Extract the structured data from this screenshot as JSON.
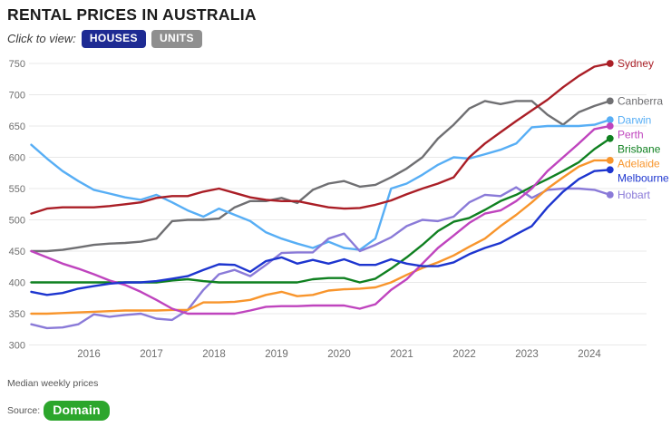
{
  "header": {
    "title": "RENTAL PRICES IN AUSTRALIA",
    "view_label": "Click to view:",
    "buttons": [
      {
        "label": "HOUSES",
        "active": true
      },
      {
        "label": "UNITS",
        "active": false
      }
    ]
  },
  "footer": {
    "note": "Median weekly prices",
    "source_label": "Source:",
    "source_name": "Domain"
  },
  "chart_data": {
    "type": "line",
    "title": "Rental prices in Australia — median weekly house rents",
    "x_start": 2015.08,
    "x_step": 0.25,
    "x_axis_years": [
      2016,
      2017,
      2018,
      2019,
      2020,
      2021,
      2022,
      2023,
      2024
    ],
    "y_ticks": [
      300,
      350,
      400,
      450,
      500,
      550,
      600,
      650,
      700,
      750
    ],
    "ylim": [
      300,
      750
    ],
    "grid": true,
    "grid_color": "#e8e8e8",
    "tick_color": "#6e6e6e",
    "legend_position": "right-end-labels",
    "series": [
      {
        "name": "Sydney",
        "color": "#aa1e26",
        "values": [
          510,
          518,
          520,
          520,
          520,
          522,
          525,
          528,
          535,
          538,
          538,
          545,
          550,
          543,
          536,
          532,
          530,
          530,
          525,
          520,
          518,
          519,
          524,
          531,
          541,
          550,
          558,
          568,
          600,
          622,
          640,
          658,
          675,
          692,
          712,
          730,
          745,
          750
        ]
      },
      {
        "name": "Canberra",
        "color": "#6f6f72",
        "values": [
          450,
          450,
          452,
          456,
          460,
          462,
          463,
          465,
          470,
          498,
          500,
          500,
          502,
          520,
          530,
          530,
          535,
          527,
          548,
          558,
          562,
          553,
          556,
          568,
          582,
          600,
          630,
          652,
          678,
          690,
          685,
          690,
          690,
          668,
          652,
          672,
          682,
          690
        ]
      },
      {
        "name": "Darwin",
        "color": "#57aef5",
        "values": [
          620,
          598,
          578,
          562,
          548,
          542,
          536,
          532,
          540,
          528,
          515,
          505,
          518,
          508,
          498,
          480,
          470,
          462,
          455,
          465,
          455,
          452,
          470,
          550,
          558,
          572,
          588,
          600,
          598,
          605,
          612,
          622,
          648,
          650,
          650,
          650,
          652,
          660
        ]
      },
      {
        "name": "Perth",
        "color": "#bf44be",
        "values": [
          450,
          440,
          430,
          422,
          413,
          403,
          396,
          385,
          372,
          358,
          350,
          350,
          350,
          350,
          355,
          361,
          362,
          362,
          363,
          363,
          363,
          358,
          365,
          388,
          405,
          430,
          455,
          475,
          495,
          510,
          515,
          530,
          550,
          578,
          600,
          622,
          645,
          650
        ]
      },
      {
        "name": "Brisbane",
        "color": "#0f8020",
        "values": [
          400,
          400,
          400,
          400,
          400,
          400,
          400,
          400,
          400,
          403,
          405,
          402,
          400,
          400,
          400,
          400,
          400,
          400,
          405,
          407,
          407,
          400,
          406,
          422,
          440,
          460,
          482,
          497,
          503,
          516,
          530,
          540,
          553,
          565,
          578,
          592,
          613,
          630
        ]
      },
      {
        "name": "Adelaide",
        "color": "#f8952c",
        "values": [
          350,
          350,
          351,
          352,
          353,
          354,
          355,
          355,
          355,
          356,
          356,
          368,
          368,
          369,
          372,
          380,
          385,
          378,
          380,
          387,
          389,
          390,
          392,
          400,
          412,
          423,
          432,
          443,
          457,
          470,
          490,
          508,
          528,
          550,
          568,
          585,
          595,
          595
        ]
      },
      {
        "name": "Melbourne",
        "color": "#1d35cf",
        "values": [
          385,
          380,
          383,
          390,
          394,
          398,
          400,
          400,
          402,
          406,
          410,
          420,
          429,
          428,
          417,
          434,
          440,
          430,
          436,
          430,
          437,
          428,
          428,
          437,
          430,
          426,
          426,
          432,
          445,
          455,
          463,
          477,
          490,
          520,
          545,
          565,
          578,
          580
        ]
      },
      {
        "name": "Hobart",
        "color": "#8a7ad8",
        "values": [
          333,
          327,
          328,
          333,
          349,
          345,
          348,
          350,
          342,
          340,
          356,
          388,
          413,
          420,
          410,
          428,
          447,
          448,
          448,
          470,
          478,
          450,
          460,
          472,
          490,
          500,
          498,
          505,
          528,
          540,
          538,
          552,
          535,
          548,
          550,
          550,
          548,
          540
        ]
      }
    ]
  }
}
